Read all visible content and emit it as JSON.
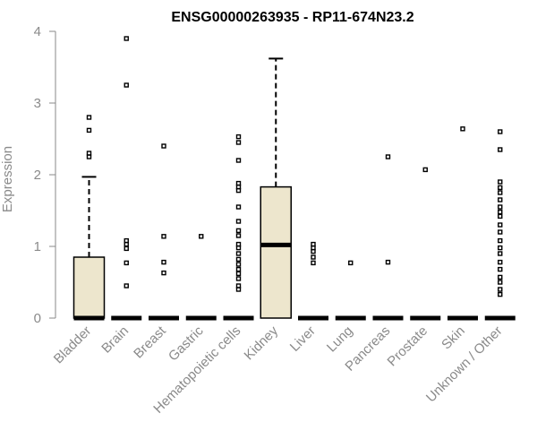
{
  "chart_data": {
    "type": "box",
    "title": "ENSG00000263935 - RP11-674N23.2",
    "xlabel": "",
    "ylabel": "Expression",
    "ylim": [
      0,
      4
    ],
    "yticks": [
      0,
      1,
      2,
      3,
      4
    ],
    "grid": false,
    "colors": {
      "box_fill": "#ede6cd",
      "box_stroke": "#000000",
      "axis": "#8a8a8a"
    },
    "categories": [
      "Bladder",
      "Brain",
      "Breast",
      "Gastric",
      "Hematopoietic cells",
      "Kidney",
      "Liver",
      "Lung",
      "Pancreas",
      "Prostate",
      "Skin",
      "Unknown / Other"
    ],
    "boxes": [
      {
        "category": "Bladder",
        "q1": 0,
        "median": 0,
        "q3": 0.85,
        "whisker_low": 0,
        "whisker_high": 1.97,
        "outliers": [
          2.25,
          2.3,
          2.62,
          2.8
        ]
      },
      {
        "category": "Brain",
        "q1": 0,
        "median": 0,
        "q3": 0,
        "whisker_low": 0,
        "whisker_high": 0,
        "outliers": [
          0.45,
          0.77,
          0.97,
          1.03,
          1.08,
          3.25,
          3.9
        ]
      },
      {
        "category": "Breast",
        "q1": 0,
        "median": 0,
        "q3": 0,
        "whisker_low": 0,
        "whisker_high": 0,
        "outliers": [
          0.63,
          0.78,
          1.14,
          2.4
        ]
      },
      {
        "category": "Gastric",
        "q1": 0,
        "median": 0,
        "q3": 0,
        "whisker_low": 0,
        "whisker_high": 0,
        "outliers": [
          1.14
        ]
      },
      {
        "category": "Hematopoietic cells",
        "q1": 0,
        "median": 0,
        "q3": 0,
        "whisker_low": 0,
        "whisker_high": 0,
        "outliers": [
          0.4,
          0.45,
          0.55,
          0.62,
          0.68,
          0.75,
          0.82,
          0.9,
          0.98,
          1.03,
          1.15,
          1.22,
          1.35,
          1.55,
          1.78,
          1.83,
          1.88,
          2.2,
          2.45,
          2.53
        ]
      },
      {
        "category": "Kidney",
        "q1": 0,
        "median": 1.02,
        "q3": 1.83,
        "whisker_low": 0,
        "whisker_high": 3.62,
        "outliers": []
      },
      {
        "category": "Liver",
        "q1": 0,
        "median": 0,
        "q3": 0,
        "whisker_low": 0,
        "whisker_high": 0,
        "outliers": [
          0.77,
          0.85,
          0.93,
          0.98,
          1.03
        ]
      },
      {
        "category": "Lung",
        "q1": 0,
        "median": 0,
        "q3": 0,
        "whisker_low": 0,
        "whisker_high": 0,
        "outliers": [
          0.77
        ]
      },
      {
        "category": "Pancreas",
        "q1": 0,
        "median": 0,
        "q3": 0,
        "whisker_low": 0,
        "whisker_high": 0,
        "outliers": [
          0.78,
          2.25
        ]
      },
      {
        "category": "Prostate",
        "q1": 0,
        "median": 0,
        "q3": 0,
        "whisker_low": 0,
        "whisker_high": 0,
        "outliers": [
          2.07
        ]
      },
      {
        "category": "Skin",
        "q1": 0,
        "median": 0,
        "q3": 0,
        "whisker_low": 0,
        "whisker_high": 0,
        "outliers": [
          2.64
        ]
      },
      {
        "category": "Unknown / Other",
        "q1": 0,
        "median": 0,
        "q3": 0,
        "whisker_low": 0,
        "whisker_high": 0,
        "outliers": [
          0.33,
          0.4,
          0.5,
          0.57,
          0.68,
          0.78,
          0.9,
          0.98,
          1.08,
          1.2,
          1.3,
          1.42,
          1.48,
          1.55,
          1.65,
          1.75,
          1.82,
          1.9,
          2.35,
          2.6
        ]
      }
    ]
  }
}
